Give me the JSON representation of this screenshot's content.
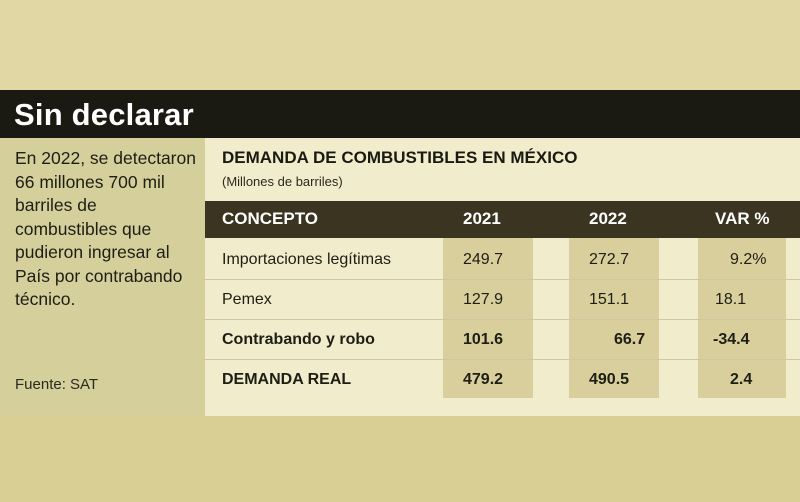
{
  "header": {
    "title": "Sin declarar"
  },
  "sidebar": {
    "description": "En 2022, se detectaron 66 millones 700 mil barriles de combustibles que pudieron ingresar al País por contrabando técnico.",
    "source": "Fuente: SAT"
  },
  "table": {
    "title": "DEMANDA DE COMBUSTIBLES EN MÉXICO",
    "subtitle": "(Millones de barriles)",
    "columns": [
      "CONCEPTO",
      "2021",
      "2022",
      "VAR %"
    ],
    "rows": [
      {
        "concepto": "Importaciones legítimas",
        "y2021": "249.7",
        "y2022": "272.7",
        "var": "9.2%",
        "bold": false
      },
      {
        "concepto": "Pemex",
        "y2021": "127.9",
        "y2022": "151.1",
        "var": "18.1",
        "bold": false
      },
      {
        "concepto": "Contrabando y robo",
        "y2021": "101.6",
        "y2022": "66.7",
        "var": "-34.4",
        "bold": true
      },
      {
        "concepto": "DEMANDA REAL",
        "y2021": "479.2",
        "y2022": "490.5",
        "var": "2.4",
        "bold": true
      }
    ]
  },
  "colors": {
    "title_bar": "#1a1a12",
    "header_row": "#3a3420",
    "column_fill": "#d8cf9c",
    "panel": "#f1eccc"
  }
}
